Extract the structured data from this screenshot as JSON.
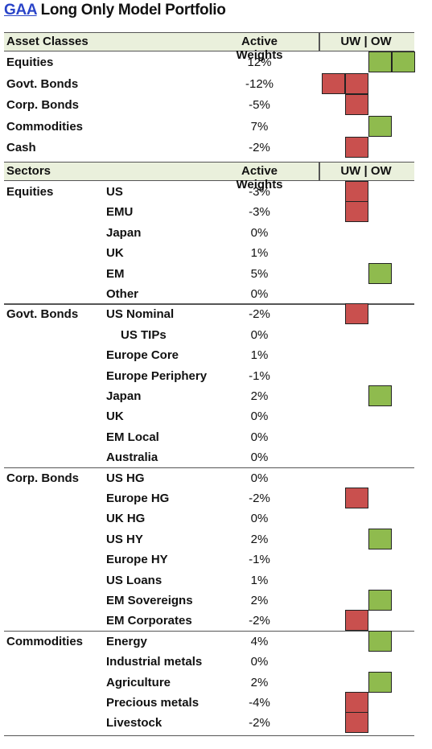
{
  "title": {
    "link": "GAA",
    "rest": " Long Only Model Portfolio"
  },
  "asset_header": {
    "col1": "Asset Classes",
    "col3": "Active Weights",
    "col4": "UW | OW"
  },
  "asset_rows": [
    {
      "name": "Equities",
      "weight": "12%",
      "direction": "ow",
      "level": 2
    },
    {
      "name": "Govt. Bonds",
      "weight": "-12%",
      "direction": "uw",
      "level": 2
    },
    {
      "name": "Corp. Bonds",
      "weight": "-5%",
      "direction": "uw",
      "level": 1
    },
    {
      "name": "Commodities",
      "weight": "7%",
      "direction": "ow",
      "level": 1
    },
    {
      "name": "Cash",
      "weight": "-2%",
      "direction": "uw",
      "level": 1
    }
  ],
  "sector_header": {
    "col1": "Sectors",
    "col3": "Active Weights",
    "col4": "UW | OW"
  },
  "sector_groups": [
    {
      "group": "Equities",
      "rows": [
        {
          "name": "US",
          "weight": "-3%",
          "direction": "uw",
          "level": 1
        },
        {
          "name": "EMU",
          "weight": "-3%",
          "direction": "uw",
          "level": 1
        },
        {
          "name": "Japan",
          "weight": "0%",
          "direction": "none",
          "level": 0
        },
        {
          "name": "UK",
          "weight": "1%",
          "direction": "none",
          "level": 0
        },
        {
          "name": "EM",
          "weight": "5%",
          "direction": "ow",
          "level": 1
        },
        {
          "name": "Other",
          "weight": "0%",
          "direction": "none",
          "level": 0
        }
      ]
    },
    {
      "group": "Govt. Bonds",
      "rows": [
        {
          "name": "US Nominal",
          "weight": "-2%",
          "direction": "uw",
          "level": 1
        },
        {
          "name": "US TIPs",
          "weight": "0%",
          "direction": "none",
          "level": 0,
          "indent": true
        },
        {
          "name": "Europe Core",
          "weight": "1%",
          "direction": "none",
          "level": 0
        },
        {
          "name": "Europe Periphery",
          "weight": "-1%",
          "direction": "none",
          "level": 0
        },
        {
          "name": "Japan",
          "weight": "2%",
          "direction": "ow",
          "level": 1
        },
        {
          "name": "UK",
          "weight": "0%",
          "direction": "none",
          "level": 0
        },
        {
          "name": "EM Local",
          "weight": "0%",
          "direction": "none",
          "level": 0
        },
        {
          "name": "Australia",
          "weight": "0%",
          "direction": "none",
          "level": 0
        }
      ]
    },
    {
      "group": "Corp. Bonds",
      "rows": [
        {
          "name": "US HG",
          "weight": "0%",
          "direction": "none",
          "level": 0
        },
        {
          "name": "Europe HG",
          "weight": "-2%",
          "direction": "uw",
          "level": 1
        },
        {
          "name": "UK HG",
          "weight": "0%",
          "direction": "none",
          "level": 0
        },
        {
          "name": "US HY",
          "weight": "2%",
          "direction": "ow",
          "level": 1
        },
        {
          "name": "Europe HY",
          "weight": "-1%",
          "direction": "none",
          "level": 0
        },
        {
          "name": "US Loans",
          "weight": "1%",
          "direction": "none",
          "level": 0
        },
        {
          "name": "EM Sovereigns",
          "weight": "2%",
          "direction": "ow",
          "level": 1
        },
        {
          "name": "EM Corporates",
          "weight": "-2%",
          "direction": "uw",
          "level": 1
        }
      ]
    },
    {
      "group": "Commodities",
      "rows": [
        {
          "name": "Energy",
          "weight": "4%",
          "direction": "ow",
          "level": 1
        },
        {
          "name": "Industrial metals",
          "weight": "0%",
          "direction": "none",
          "level": 0
        },
        {
          "name": "Agriculture",
          "weight": "2%",
          "direction": "ow",
          "level": 1
        },
        {
          "name": "Precious metals",
          "weight": "-4%",
          "direction": "uw",
          "level": 1
        },
        {
          "name": "Livestock",
          "weight": "-2%",
          "direction": "uw",
          "level": 1
        }
      ]
    }
  ],
  "colors": {
    "uw": "#c9504e",
    "ow": "#8fbb4e",
    "header_bg": "#eaf0dc",
    "link": "#2a44c8"
  }
}
